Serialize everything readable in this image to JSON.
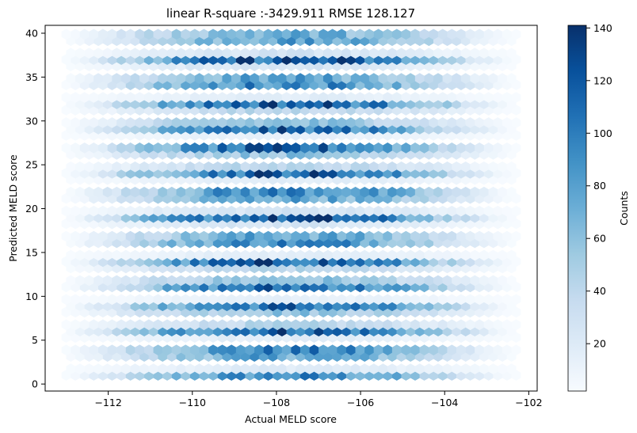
{
  "chart_data": {
    "type": "hexbin",
    "title": "linear R-square :-3429.911 RMSE 128.127",
    "xlabel": "Actual MELD score",
    "ylabel": "Predicted MELD score",
    "xlim": [
      -113.5,
      -101.8
    ],
    "ylim": [
      -0.8,
      40.9
    ],
    "x_ticks": [
      -112,
      -110,
      -108,
      -106,
      -104,
      -102
    ],
    "x_tick_labels": [
      "−112",
      "−110",
      "−108",
      "−106",
      "−104",
      "−102"
    ],
    "y_ticks": [
      0,
      5,
      10,
      15,
      20,
      25,
      30,
      35,
      40
    ],
    "y_tick_labels": [
      "0",
      "5",
      "10",
      "15",
      "20",
      "25",
      "30",
      "35",
      "40"
    ],
    "colormap": "Blues",
    "colorbar": {
      "label": "Counts",
      "range": [
        2,
        141
      ],
      "ticks": [
        20,
        40,
        60,
        80,
        100,
        120,
        140
      ],
      "tick_labels": [
        "20",
        "40",
        "60",
        "80",
        "100",
        "120",
        "140"
      ]
    },
    "grid": false,
    "x_range_of_points": [
      -113,
      -102.3
    ],
    "y_values": [
      1,
      2,
      3,
      4,
      5,
      6,
      7,
      8,
      9,
      10,
      11,
      12,
      13,
      14,
      15,
      16,
      17,
      18,
      19,
      20,
      21,
      22,
      23,
      24,
      25,
      26,
      27,
      28,
      29,
      30,
      31,
      32,
      33,
      34,
      35,
      36,
      37,
      38,
      39,
      40
    ],
    "peak_x": -107.7
  }
}
